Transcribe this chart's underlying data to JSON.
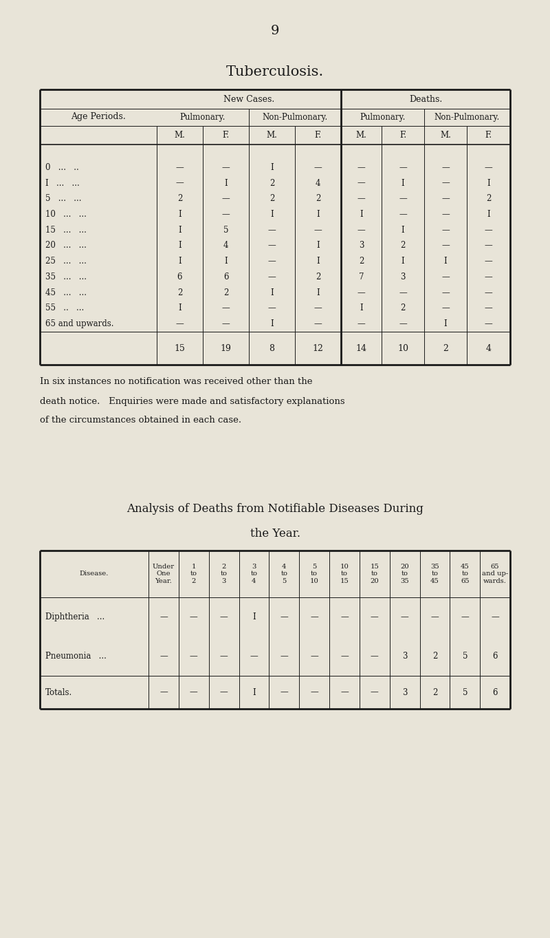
{
  "bg_color": "#e8e4d8",
  "page_number": "9",
  "tb_title": "Tuberculosis.",
  "tb_rows": [
    [
      "0   ...   ..",
      "—",
      "—",
      "I",
      "—",
      "—",
      "—",
      "—",
      "—"
    ],
    [
      "I   ...   ...",
      "—",
      "I",
      "2",
      "4",
      "—",
      "I",
      "—",
      "I"
    ],
    [
      "5   ...   ...",
      "2",
      "—",
      "2",
      "2",
      "—",
      "—",
      "—",
      "2"
    ],
    [
      "10   ...   ...",
      "I",
      "—",
      "I",
      "I",
      "I",
      "—",
      "—",
      "I"
    ],
    [
      "15   ...   ...",
      "I",
      "5",
      "—",
      "—",
      "—",
      "I",
      "—",
      "—"
    ],
    [
      "20   ...   ...",
      "I",
      "4",
      "—",
      "I",
      "3",
      "2",
      "—",
      "—"
    ],
    [
      "25   ...   ...",
      "I",
      "I",
      "—",
      "I",
      "2",
      "I",
      "I",
      "—"
    ],
    [
      "35   ...   ...",
      "6",
      "6",
      "—",
      "2",
      "7",
      "3",
      "—",
      "—"
    ],
    [
      "45   ...   ...",
      "2",
      "2",
      "I",
      "I",
      "—",
      "—",
      "—",
      "—"
    ],
    [
      "55   ..   ...",
      "I",
      "—",
      "—",
      "—",
      "I",
      "2",
      "—",
      "—"
    ],
    [
      "65 and upwards.",
      "—",
      "—",
      "I",
      "—",
      "—",
      "—",
      "I",
      "—"
    ]
  ],
  "tb_totals": [
    "",
    "15",
    "19",
    "8",
    "12",
    "14",
    "10",
    "2",
    "4"
  ],
  "paragraph_lines": [
    "In six instances no notification was received other than the",
    "death notice.   Enquiries were made and satisfactory explanations",
    "of the circumstances obtained in each case."
  ],
  "analysis_title1": "Analysis of Deaths from Notifiable Diseases During",
  "analysis_title2": "the Year.",
  "an_header": [
    "Disease.",
    "Under\nOne\nYear.",
    "1\nto\n2",
    "2\nto\n3",
    "3\nto\n4",
    "4\nto\n5",
    "5\nto\n10",
    "10\nto\n15",
    "15\nto\n20",
    "20\nto\n35",
    "35\nto\n45",
    "45\nto\n65",
    "65\nand up-\nwards."
  ],
  "an_rows": [
    [
      "Diphtheria   ...",
      "—",
      "—",
      "—",
      "I",
      "—",
      "—",
      "—",
      "—",
      "—",
      "—",
      "—",
      "—"
    ],
    [
      "Pneumonia   ...",
      "—",
      "—",
      "—",
      "—",
      "—",
      "—",
      "—",
      "—",
      "3",
      "2",
      "5",
      "6"
    ]
  ],
  "an_totals": [
    "Totals.",
    "—",
    "—",
    "—",
    "I",
    "—",
    "—",
    "—",
    "—",
    "3",
    "2",
    "5",
    "6"
  ]
}
